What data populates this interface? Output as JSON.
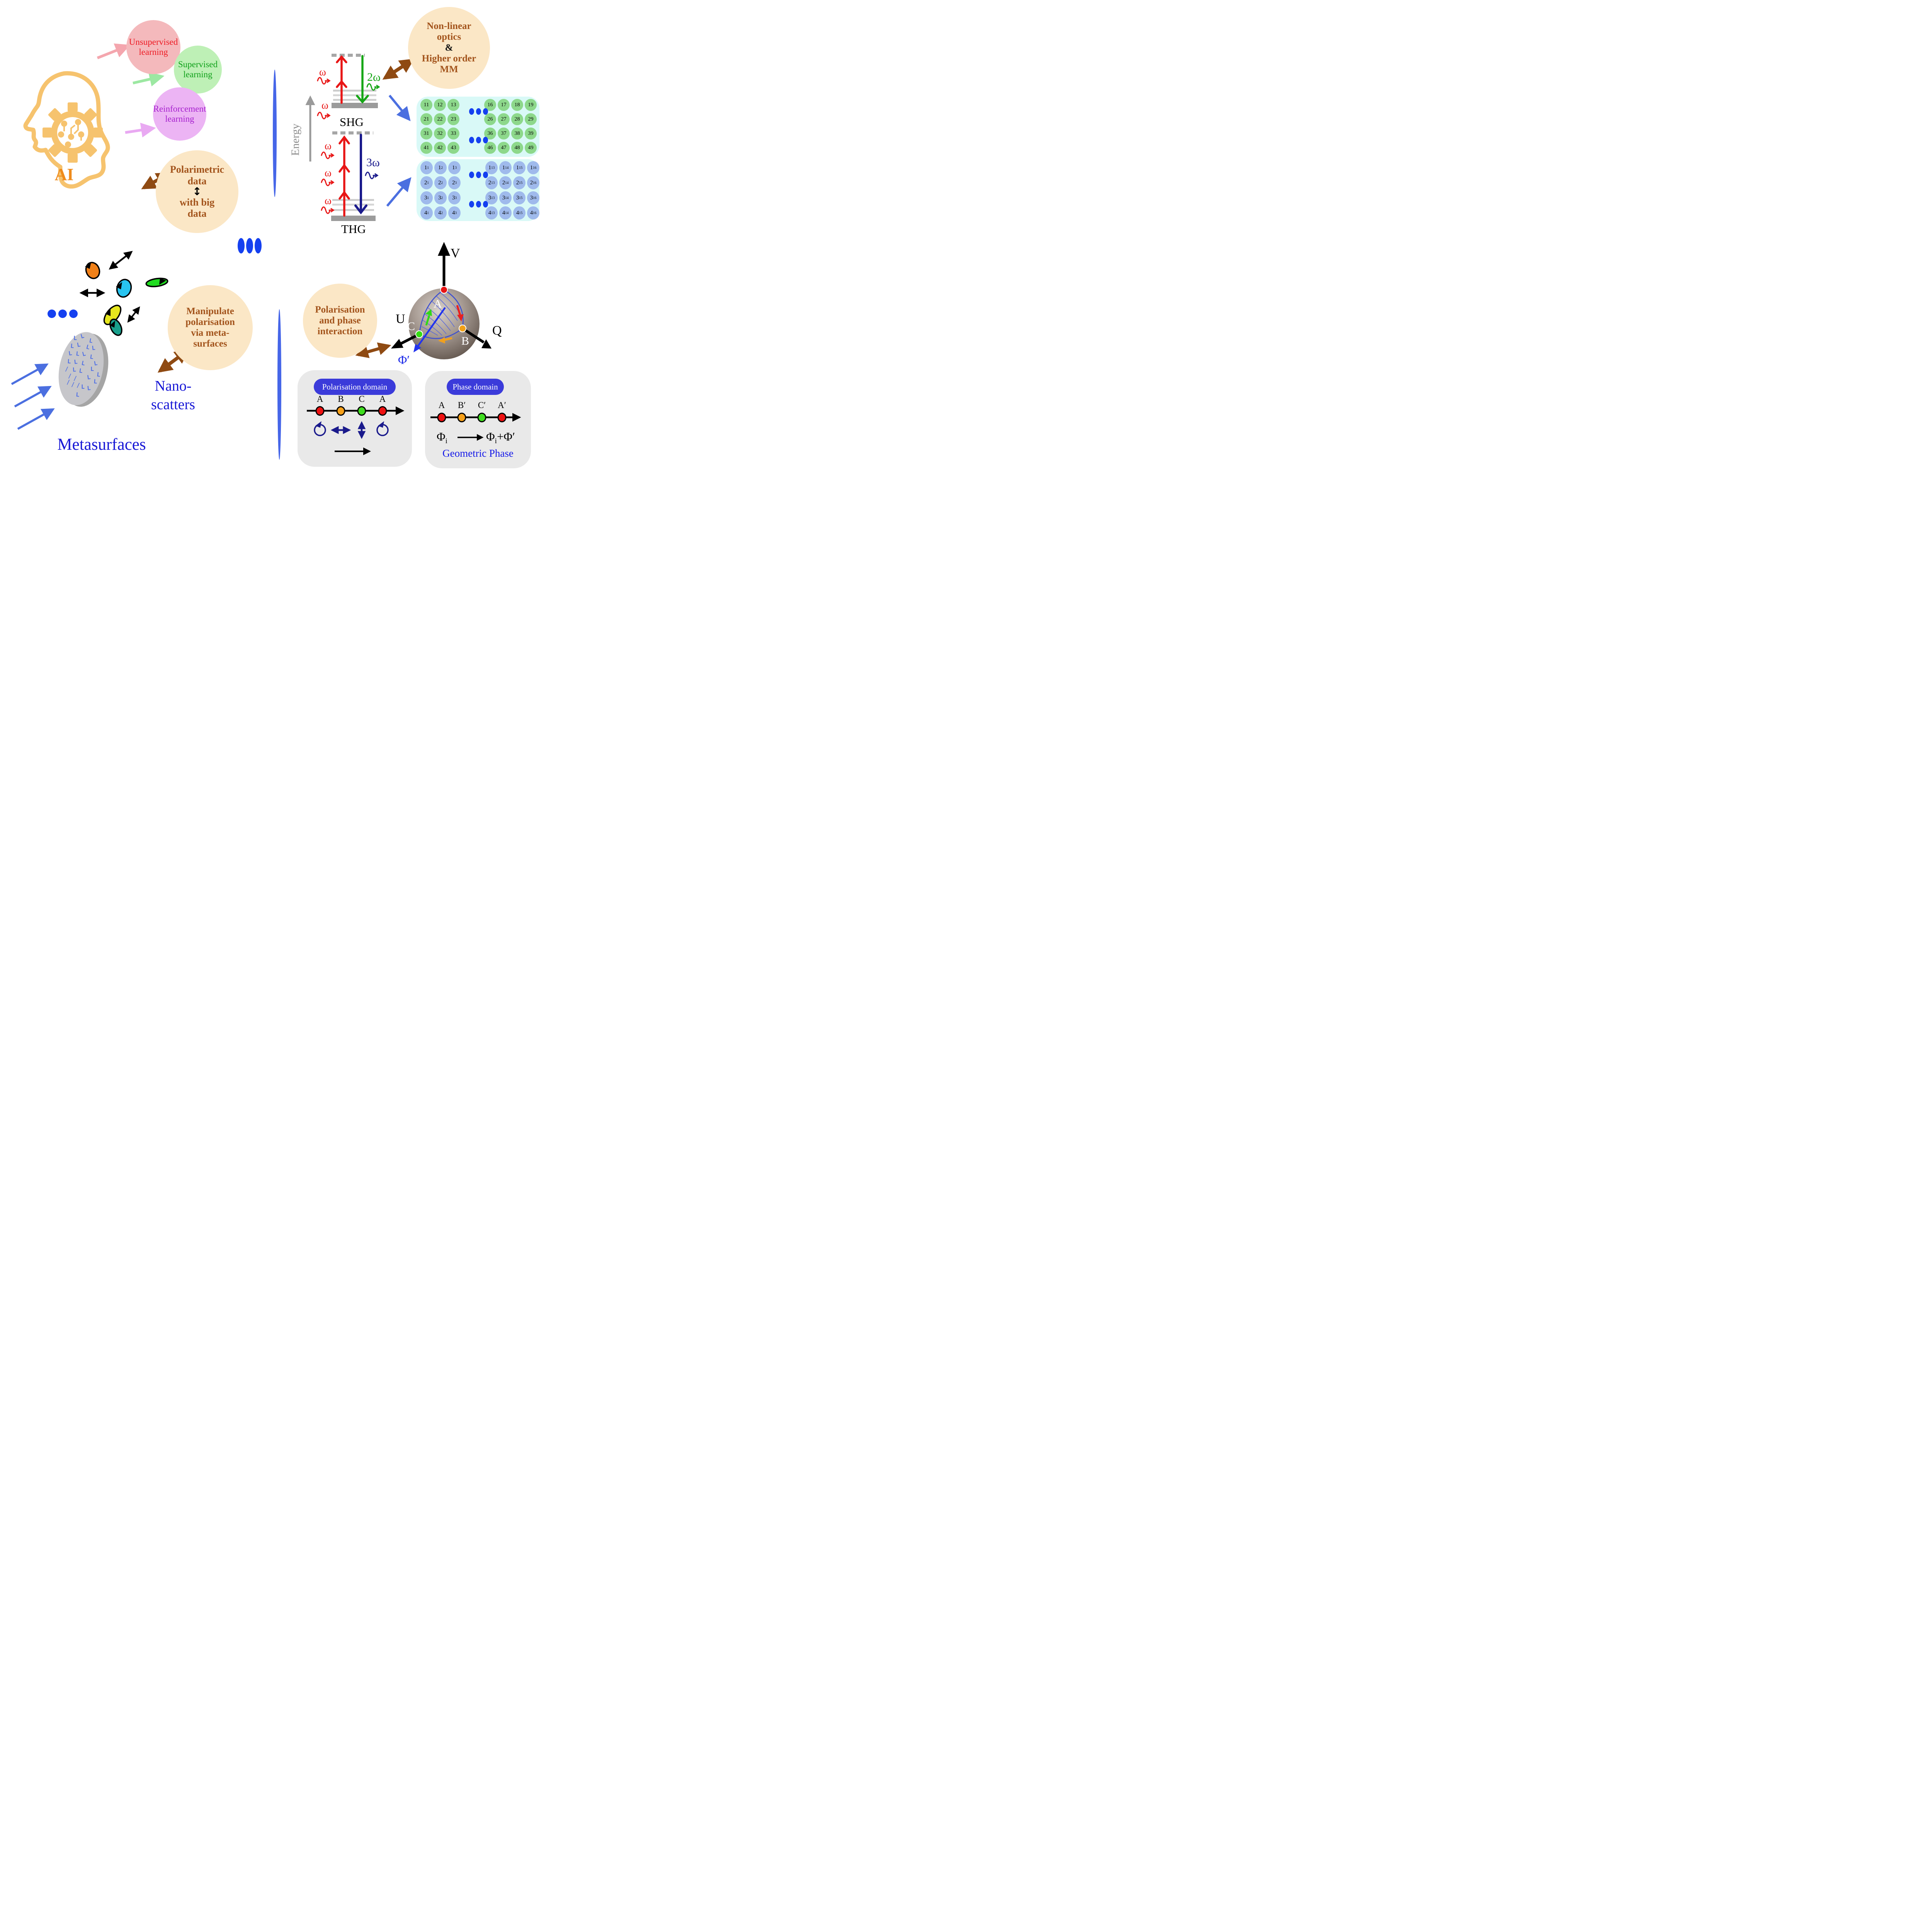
{
  "quadrant_ai": {
    "ai_label": "AI",
    "unsupervised": {
      "line1": "Unsupervised",
      "line2": "learning"
    },
    "supervised": {
      "line1": "Supervised",
      "line2": "learning"
    },
    "reinforcement": {
      "line1": "Reinforcement",
      "line2": "learning"
    },
    "polarimetric": {
      "line1": "Polarimetric",
      "line2": "data",
      "link_symbol": "↕",
      "line3": "with big",
      "line4": "data"
    }
  },
  "quadrant_nlo": {
    "energy_axis_label": "Energy",
    "shg": {
      "omega_labels": [
        "ω",
        "ω"
      ],
      "emission": "2ω",
      "label": "SHG"
    },
    "thg": {
      "omega_labels": [
        "ω",
        "ω",
        "ω"
      ],
      "emission": "3ω",
      "label": "THG"
    },
    "nonlinear_circle": {
      "line1": "Non-linear",
      "line2": "optics",
      "amp": "&",
      "line3": "Higher order",
      "line4": "MM"
    },
    "green_matrix": {
      "rows": [
        [
          "11",
          "12",
          "13",
          "16",
          "17",
          "18",
          "19"
        ],
        [
          "21",
          "22",
          "23",
          "26",
          "27",
          "28",
          "29"
        ],
        [
          "31",
          "32",
          "33",
          "36",
          "37",
          "38",
          "39"
        ],
        [
          "41",
          "42",
          "43",
          "46",
          "47",
          "48",
          "49"
        ]
      ]
    },
    "blue_matrix": {
      "row_mains": [
        "1",
        "2",
        "3",
        "4"
      ],
      "col_subs": [
        "1",
        "2",
        "3",
        "13",
        "14",
        "15",
        "16"
      ]
    }
  },
  "quadrant_meta": {
    "nano_label": {
      "line1": "Nano-",
      "line2": "scatters"
    },
    "metasurfaces_label": "Metasurfaces",
    "manipulate_circle": {
      "line1": "Manipulate",
      "line2": "polarisation",
      "line3": "via meta-",
      "line4": "surfaces"
    }
  },
  "quadrant_phase": {
    "interaction_circle": {
      "line1": "Polarisation",
      "line2": "and phase",
      "line3": "interaction"
    },
    "sphere": {
      "axis_v": "V",
      "axis_u": "U",
      "axis_q": "Q",
      "point_a": "A",
      "point_b": "B",
      "point_c": "C",
      "phi_label": "Φ′"
    },
    "polarisation_domain": {
      "title": "Polarisation domain",
      "points": [
        "A",
        "B",
        "C",
        "A"
      ]
    },
    "phase_domain": {
      "title": "Phase domain",
      "points": [
        "A",
        "B′",
        "C′",
        "A′"
      ],
      "formula": {
        "from_main": "Φ",
        "from_sub": "i",
        "to_main": "Φ",
        "to_sub": "i",
        "to_suffix": "+Φ′"
      },
      "caption": "Geometric Phase"
    }
  },
  "colors": {
    "peach_circle": "#FBE7C6",
    "brown_text": "#A3541C",
    "brown_arrow": "#8F4A12",
    "royal_blue": "#2B50E0",
    "dot_blue": "#1540F0",
    "red_text": "#ED1B24",
    "green_text": "#0FA019",
    "purple_text": "#A620CE",
    "pink_circle": "#F4B9BC",
    "green_circle": "#BEF0B6",
    "purple_circle": "#ECB4F4",
    "head_orange": "#F6C36E",
    "ai_orange": "#EF8B1B",
    "matrix_bg": "#D9F9F7",
    "green_cell": "#8DD88B",
    "blue_cell": "#9FBAEC",
    "red_arrow": "#E81616",
    "green_arrow": "#16A616",
    "navy_arrow": "#1A1A8C",
    "panel_gray": "#E9E9E9",
    "pill_blue": "#3B3BDA",
    "blue_label": "#1818D6",
    "point_colors": [
      "#EE1111",
      "#F6A019",
      "#3FDD1F",
      "#EE1111"
    ]
  }
}
